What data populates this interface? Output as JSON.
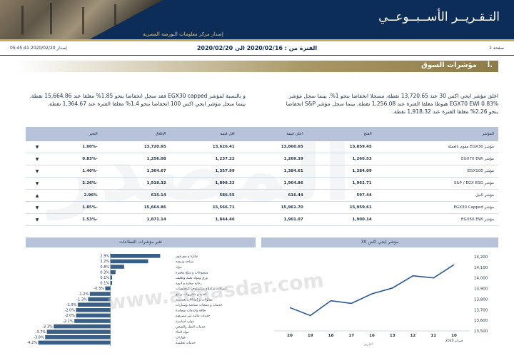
{
  "header": {
    "title": "التـقـريــر الأســبــوعــي",
    "subtitle": "إصدار مركز معلومات البورصة المصرية",
    "page_label": "صفحة 1",
    "issue_label": "إصدار 2020/02/20 05:45:41",
    "period": "الفترة من : 2020/02/16 الى 2020/02/20"
  },
  "section": {
    "number": "أ.",
    "title": "مؤشرات السوق"
  },
  "paragraphs": {
    "right": "اغلق مؤشر ايجي اكس 30 عند 13,720.65 نقطة، مسجلا انخفاضا بنحو 1%. بينما سجل مؤشر EGX70 EWI 0.83% هبوطا مغلقا الفترة عند 1,256.08 نقطة، بينما سجل مؤشر S&P انخفاضا بنحو 2.26% مغلقا الفترة عند 1,918.32 نقطة.",
    "left": "و بالنسبة لمؤشر EGX30 capped فقد سجل انخفاضا بنحو 1.85% مغلقا عند 15,664.86 نقطة. بينما سجل مؤشر ايجي اكس 100 انخفاضا بنحو 1.4% مغلقا الفترة عند 1,364.67 نقطة."
  },
  "market_table": {
    "headers": [
      "المؤشر",
      "الفتح",
      "اعلى قيمة",
      "اقل قيمة",
      "الإغلاق",
      "التغير",
      ""
    ],
    "rows": [
      {
        "name": "مؤشر EGX30 مقوم بالعملة",
        "open": "13,859.45",
        "high": "13,860.65",
        "low": "13,626.41",
        "close": "13,720.65",
        "change": "-1.00%",
        "dir": "down"
      },
      {
        "name": "مؤشر EGX70 EWI",
        "open": "1,266.53",
        "high": "1,269.39",
        "low": "1,237.22",
        "close": "1,256.08",
        "change": "-0.83%",
        "dir": "down"
      },
      {
        "name": "مؤشر EGX100",
        "open": "1,384.09",
        "high": "1,384.61",
        "low": "1,357.99",
        "close": "1,364.67",
        "change": "-1.40%",
        "dir": "down"
      },
      {
        "name": "مؤشر S&P / EGX ESG",
        "open": "1,962.71",
        "high": "1,964.86",
        "low": "1,898.22",
        "close": "1,918.32",
        "change": "-2.26%",
        "dir": "down"
      },
      {
        "name": "مؤشر النيل",
        "open": "597.44",
        "high": "616.44",
        "low": "586.55",
        "close": "615.14",
        "change": "2.96%",
        "dir": "up"
      },
      {
        "name": "مؤشر EGX30 Capped",
        "open": "15,959.61",
        "high": "15,961.70",
        "low": "15,566.71",
        "close": "15,664.86",
        "change": "-1.85%",
        "dir": "down"
      },
      {
        "name": "مؤشر EGX50 EWI",
        "open": "1,900.14",
        "high": "1,901.07",
        "low": "1,844.46",
        "close": "1,871.14",
        "change": "-1.53%",
        "dir": "down"
      }
    ]
  },
  "chart_data": [
    {
      "type": "bar",
      "title": "تغير مؤشرات القطاعات",
      "categories": [
        "تجارة و موزعون",
        "سياحة وترفيه",
        "بنوك",
        "منسوجات و سلع معمرة",
        "ورق ومواد تعبئة وتغليف",
        "رعاية صحية و ادوية",
        "اتصالات و إعلام وتكنولوجيا المعلومات",
        "أغذية و مشروبات و تبغ",
        "مقاولات و إنشاءات هندسية",
        "خدمات و منتجات صناعية وسيارات",
        "طاقة وخدمات مساندة",
        "خدمات مالية غير مصرفية",
        "موارد أساسية",
        "خدمات النقل والشحن",
        "مواد البناء",
        "عقارات",
        "خدمات تعليمية"
      ],
      "values": [
        2.9,
        2.2,
        0.8,
        0.3,
        0.1,
        0.1,
        -0.3,
        -1.2,
        -1.3,
        -1.9,
        -2.0,
        -2.0,
        -2.1,
        -3.3,
        -3.7,
        -3.8,
        -4.2
      ],
      "labels": [
        "2.9%",
        "2.2%",
        "0.8%",
        "0.3%",
        "0.1%",
        "0.1%",
        "-0.3%",
        "-1.2%",
        "-1.3%",
        "-1.9%",
        "-2.0%",
        "-2.0%",
        "-2.1%",
        "-3.3%",
        "-3.7%",
        "-3.8%",
        "-4.2%"
      ],
      "xlim": [
        -4.6,
        3.3
      ],
      "color": "#3a5f87"
    },
    {
      "type": "line",
      "title": "مؤشر ايجي اكس 30",
      "x": [
        "20",
        "19",
        "18",
        "17",
        "16",
        "13",
        "12",
        "11",
        "10"
      ],
      "x_sublabel": "فبراير 2020",
      "x_caption": "التاريخ",
      "y": [
        13720,
        13645,
        13785,
        13760,
        13850,
        13905,
        14020,
        14000,
        14125
      ],
      "ylim": [
        13500,
        14200
      ],
      "yticks": [
        "13,500",
        "13,600",
        "13,700",
        "13,800",
        "13,900",
        "14,000",
        "14,100",
        "14,200"
      ],
      "color": "#2b5797"
    }
  ],
  "watermark": {
    "site": "www.almasdar.com",
    "brand": "المصدر"
  }
}
